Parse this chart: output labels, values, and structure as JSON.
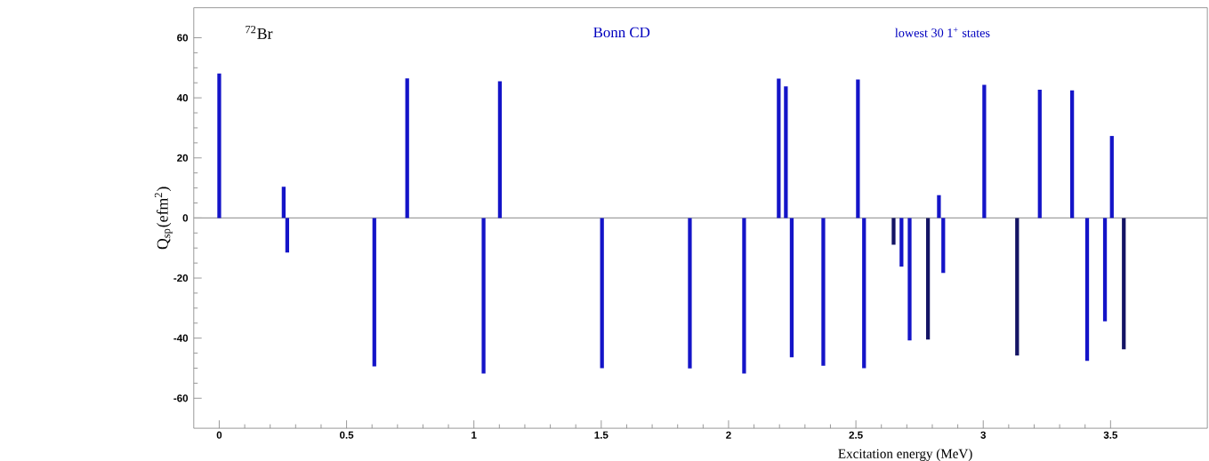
{
  "chart_data": {
    "type": "bar",
    "x": [
      0,
      0.253,
      0.267,
      0.609,
      0.738,
      1.038,
      1.102,
      1.503,
      1.848,
      2.061,
      2.197,
      2.225,
      2.248,
      2.372,
      2.508,
      2.532,
      2.648,
      2.679,
      2.711,
      2.783,
      2.826,
      2.843,
      3.004,
      3.133,
      3.222,
      3.349,
      3.408,
      3.478,
      3.505,
      3.552
    ],
    "values": [
      48.1,
      10.4,
      -11.5,
      -49.4,
      46.5,
      -51.8,
      45.5,
      -50.0,
      -50.1,
      -51.8,
      46.4,
      43.8,
      -46.4,
      -49.2,
      46.1,
      -50.0,
      -8.9,
      -16.2,
      -40.8,
      -40.5,
      7.6,
      -18.3,
      44.3,
      -45.8,
      42.7,
      42.5,
      -47.6,
      -34.4,
      27.3,
      -43.7
    ],
    "colors": [
      "#1414c8",
      "#1414c8",
      "#1414c8",
      "#1414c8",
      "#1414c8",
      "#1414c8",
      "#1414c8",
      "#1414c8",
      "#1414c8",
      "#1414c8",
      "#1414c8",
      "#1414c8",
      "#1414c8",
      "#1414c8",
      "#1414c8",
      "#1414c8",
      "#141464",
      "#1414c8",
      "#1414c8",
      "#141464",
      "#1414c8",
      "#1414c8",
      "#1414c8",
      "#141464",
      "#1414c8",
      "#1414c8",
      "#1414c8",
      "#1414c8",
      "#1414c8",
      "#141464"
    ],
    "xlim": [
      -0.1,
      3.88
    ],
    "ylim": [
      -70,
      70
    ],
    "xticks": [
      0,
      0.5,
      1,
      1.5,
      2,
      2.5,
      3,
      3.5
    ],
    "yticks": [
      -60,
      -40,
      -20,
      0,
      20,
      40,
      60
    ],
    "xlabel": "Excitation energy (MeV)",
    "ylabel": "Q$_{sp}$(efm$^{2}$)",
    "annotations": [
      "$^{72}$Br",
      "Bonn CD",
      "lowest 30   1$^{+}$ states"
    ],
    "ref_lines": [
      {
        "axis": "y",
        "value": 0,
        "color": "#a0a0a0"
      }
    ],
    "grid": false
  }
}
